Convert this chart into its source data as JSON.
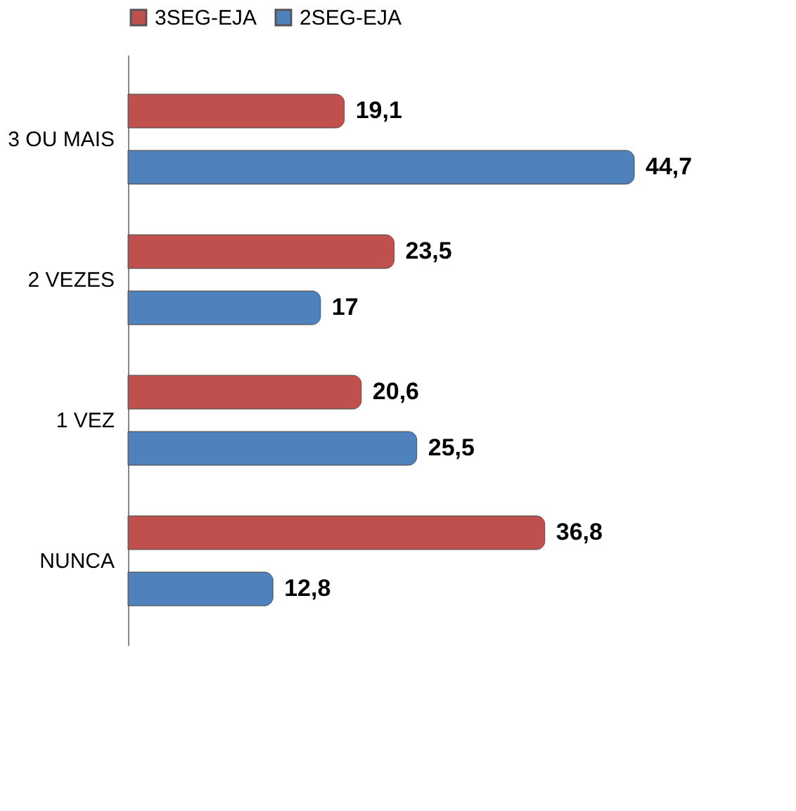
{
  "chart_data": {
    "type": "bar",
    "orientation": "horizontal",
    "categories": [
      "3 OU MAIS",
      "2 VEZES",
      "1 VEZ",
      "NUNCA"
    ],
    "series": [
      {
        "name": "3SEG-EJA",
        "color": "#c0504d",
        "values": [
          19.1,
          23.5,
          20.6,
          36.8
        ],
        "value_labels": [
          "19,1",
          "23,5",
          "20,6",
          "36,8"
        ]
      },
      {
        "name": "2SEG-EJA",
        "color": "#4f81bd",
        "values": [
          44.7,
          17,
          25.5,
          12.8
        ],
        "value_labels": [
          "44,7",
          "17",
          "25,5",
          "12,8"
        ]
      }
    ],
    "legend": "top",
    "grid": false
  }
}
